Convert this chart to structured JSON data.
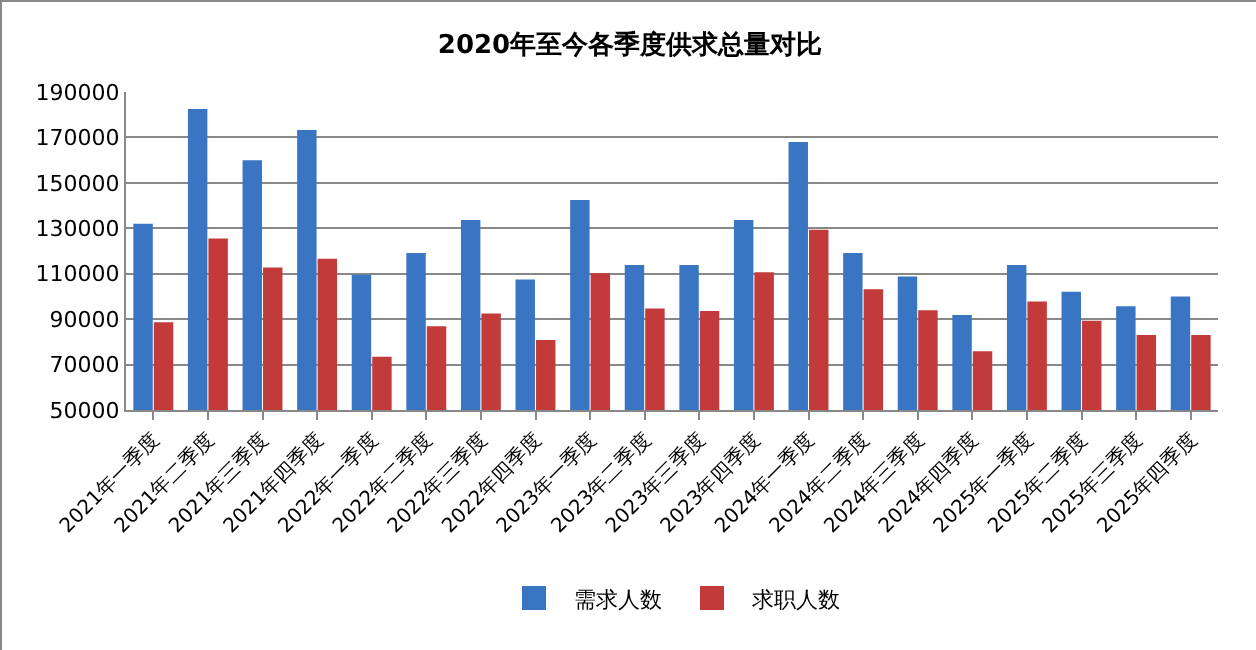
{
  "chart_data": {
    "type": "bar",
    "title": "2020年至今各季度供求总量对比",
    "categories": [
      "2021年一季度",
      "2021年二季度",
      "2021年三季度",
      "2021年四季度",
      "2022年一季度",
      "2022年二季度",
      "2022年三季度",
      "2022年四季度",
      "2023年一季度",
      "2023年二季度",
      "2023年三季度",
      "2023年四季度",
      "2024年一季度",
      "2024年二季度",
      "2024年三季度",
      "2024年四季度",
      "2025年一季度",
      "2025年二季度",
      "2025年三季度",
      "2025年四季度"
    ],
    "series": [
      {
        "name": "需求人数",
        "color": "#3a75c4",
        "values": [
          132000,
          182500,
          160000,
          173300,
          109500,
          119100,
          133600,
          107400,
          142500,
          113800,
          113800,
          133600,
          168000,
          119100,
          108800,
          91800,
          113800,
          102100,
          95700,
          100000
        ]
      },
      {
        "name": "求职人数",
        "color": "#c23b3a",
        "values": [
          88600,
          125500,
          112700,
          116600,
          73400,
          86900,
          92500,
          80800,
          110200,
          94700,
          93600,
          110600,
          129400,
          103200,
          93900,
          75900,
          97800,
          89300,
          83000,
          83000
        ]
      }
    ],
    "ylim": [
      50000,
      190000
    ],
    "yticks": [
      50000,
      70000,
      90000,
      110000,
      130000,
      150000,
      170000,
      190000
    ],
    "grid": "y",
    "legend": "bottom"
  }
}
